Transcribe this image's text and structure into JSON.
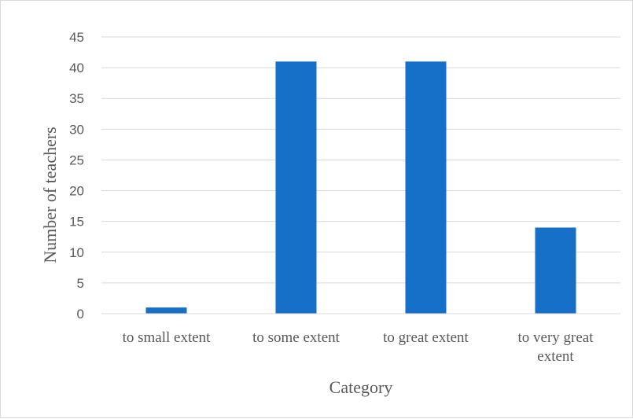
{
  "chart_data": {
    "type": "bar",
    "categories": [
      "to small extent",
      "to some extent",
      "to great extent",
      "to very great extent"
    ],
    "category_label_lines": [
      [
        "to small extent"
      ],
      [
        "to some extent"
      ],
      [
        "to great extent"
      ],
      [
        "to very great",
        "extent"
      ]
    ],
    "values": [
      1,
      41,
      41,
      14
    ],
    "xlabel": "Category",
    "ylabel": "Number of teachers",
    "ylim": [
      0,
      45
    ],
    "yticks": [
      0,
      5,
      10,
      15,
      20,
      25,
      30,
      35,
      40,
      45
    ],
    "grid": true,
    "legend": "none",
    "bar_color": "#1670C8",
    "grid_color": "#d9d9d9"
  }
}
